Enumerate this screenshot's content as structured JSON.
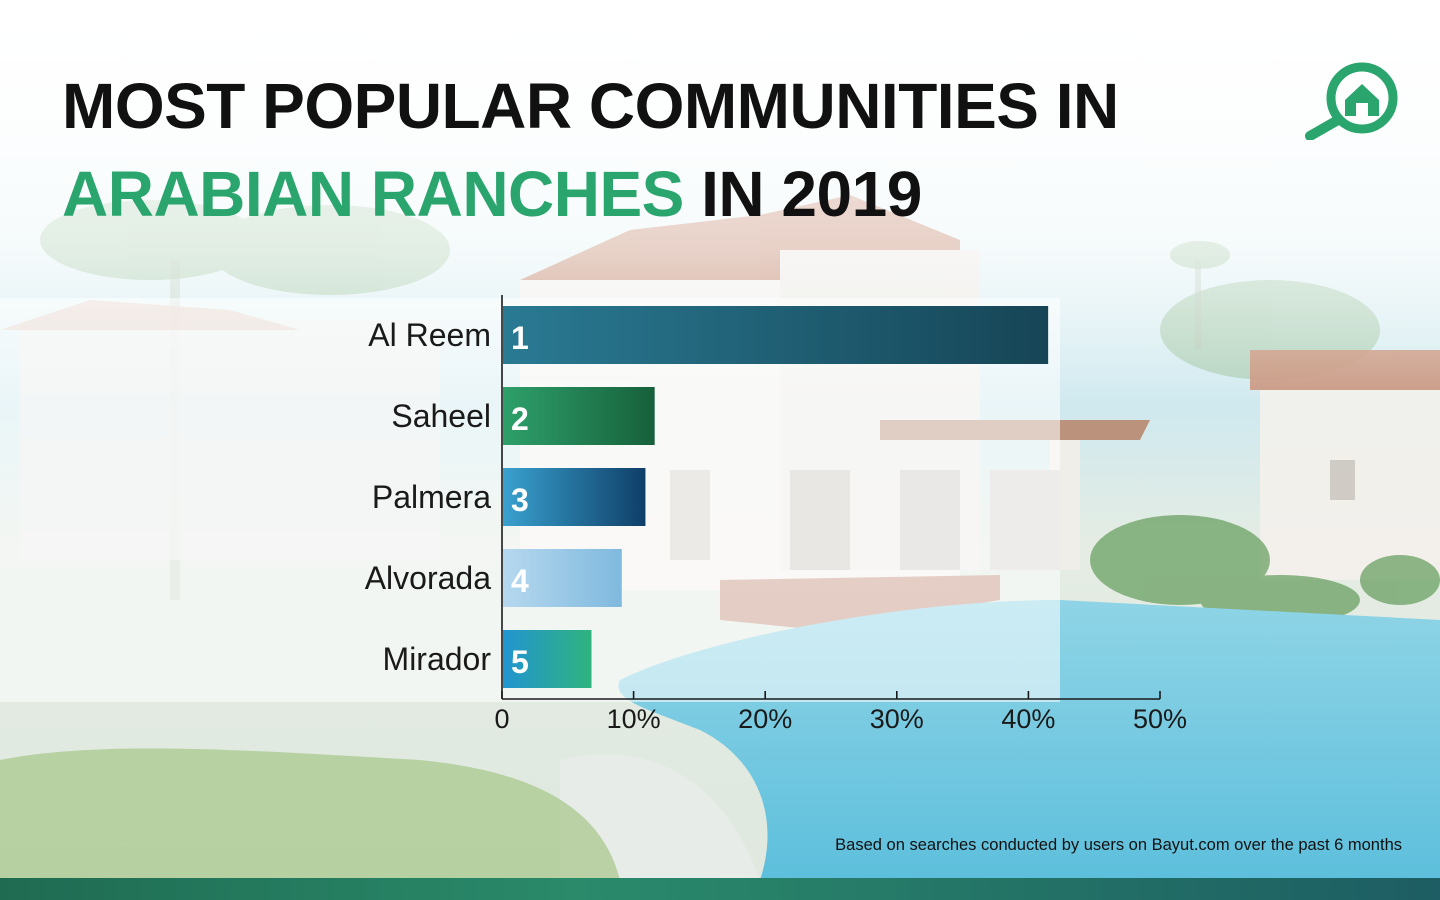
{
  "title": {
    "line1": "MOST POPULAR COMMUNITIES IN",
    "line2_accent": "ARABIAN RANCHES",
    "line2_rest": " IN 2019"
  },
  "colors": {
    "accent": "#2aa56d",
    "title_text": "#111111",
    "bar_footer": "#1f6b52"
  },
  "icons": {
    "logo": "magnifier-house-icon"
  },
  "chart_data": {
    "type": "bar",
    "orientation": "horizontal",
    "title": "",
    "xlabel": "",
    "ylabel": "",
    "categories": [
      "Al Reem",
      "Saheel",
      "Palmera",
      "Alvorada",
      "Mirador"
    ],
    "ranks": [
      "1",
      "2",
      "3",
      "4",
      "5"
    ],
    "values": [
      41.5,
      11.6,
      10.9,
      9.1,
      6.8
    ],
    "unit": "%",
    "xlim": [
      0,
      50
    ],
    "xticks": [
      0,
      10,
      20,
      30,
      40,
      50
    ],
    "xtick_labels": [
      "0",
      "10%",
      "20%",
      "30%",
      "40%",
      "50%"
    ],
    "grid": false,
    "legend": "none",
    "bar_colors": [
      [
        "#2a7a93",
        "#164556"
      ],
      [
        "#2ea06a",
        "#17603b"
      ],
      [
        "#3aa1cf",
        "#0f3f68"
      ],
      [
        "#b6d8ee",
        "#7fb9de"
      ],
      [
        "#2295d0",
        "#2fb37e"
      ]
    ]
  },
  "footnote": "Based on searches conducted by users on Bayut.com over the past 6 months"
}
